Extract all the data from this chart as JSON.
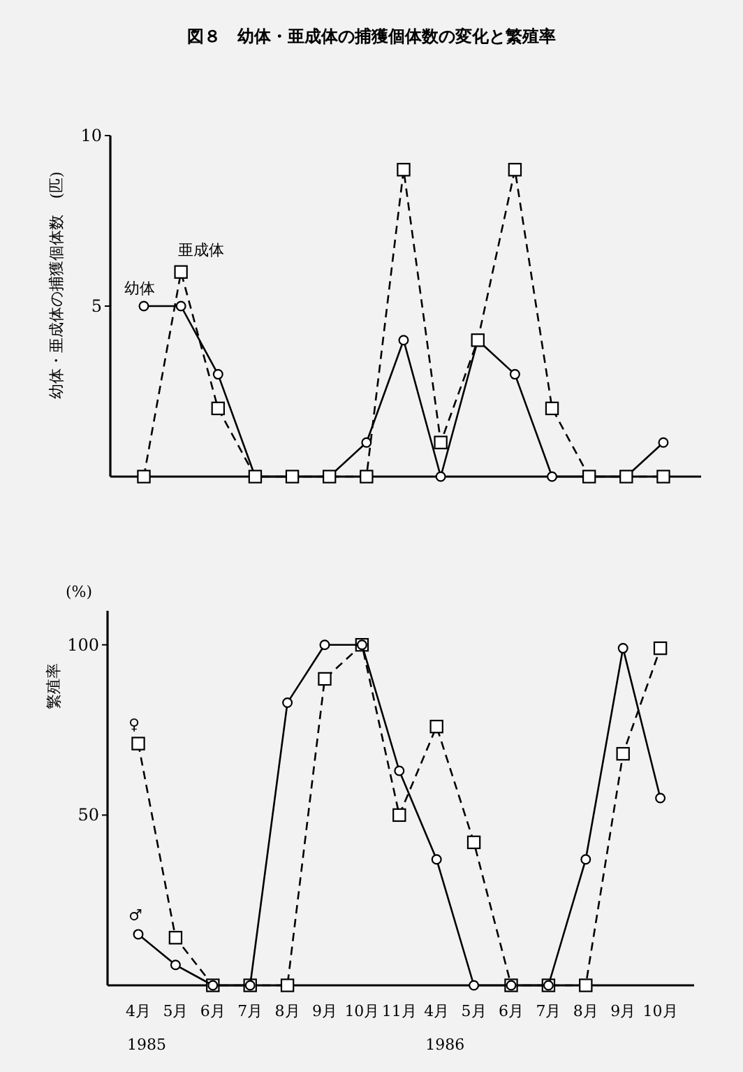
{
  "chart_data": [
    {
      "type": "line",
      "title": "図８　幼体・亜成体の捕獲個体数の変化と繁殖率",
      "ylabel": "幼体・亜成体の捕獲個体数　(匹)",
      "categories": [
        null,
        null,
        null,
        null,
        null,
        null,
        null,
        null,
        null,
        null,
        null,
        null,
        null,
        null,
        null
      ],
      "ylim": [
        0,
        10
      ],
      "yticks": [
        5,
        10
      ],
      "grid": false,
      "series": [
        {
          "name": "幼体",
          "color": "#000000",
          "marker": "circle",
          "line_style": "solid",
          "values": [
            5,
            5,
            3,
            0,
            0,
            0,
            1,
            4,
            0,
            4,
            3,
            0,
            0,
            0,
            1
          ]
        },
        {
          "name": "亜成体",
          "color": "#000000",
          "marker": "square",
          "line_style": "dashed",
          "values": [
            0,
            6,
            2,
            0,
            0,
            0,
            0,
            9,
            1,
            4,
            9,
            2,
            0,
            0,
            0
          ]
        }
      ]
    },
    {
      "type": "line",
      "ylabel": "繁殖率",
      "annotations": [
        "(%)",
        "1985",
        "1986"
      ],
      "categories": [
        "4月",
        "5月",
        "6月",
        "7月",
        "8月",
        "9月",
        "10月",
        "11月",
        "4月",
        "5月",
        "6月",
        "7月",
        "8月",
        "9月",
        "10月"
      ],
      "ylim": [
        0,
        110
      ],
      "yticks": [
        50,
        100
      ],
      "grid": false,
      "series": [
        {
          "name": "♀",
          "color": "#000000",
          "marker": "square",
          "line_style": "dashed",
          "values": [
            71,
            14,
            0,
            0,
            0,
            90,
            100,
            50,
            76,
            42,
            0,
            0,
            0,
            68,
            99
          ]
        },
        {
          "name": "♂",
          "color": "#000000",
          "marker": "circle",
          "line_style": "solid",
          "values": [
            15,
            6,
            0,
            0,
            83,
            100,
            100,
            63,
            37,
            0,
            0,
            0,
            37,
            99,
            55
          ]
        }
      ]
    }
  ]
}
